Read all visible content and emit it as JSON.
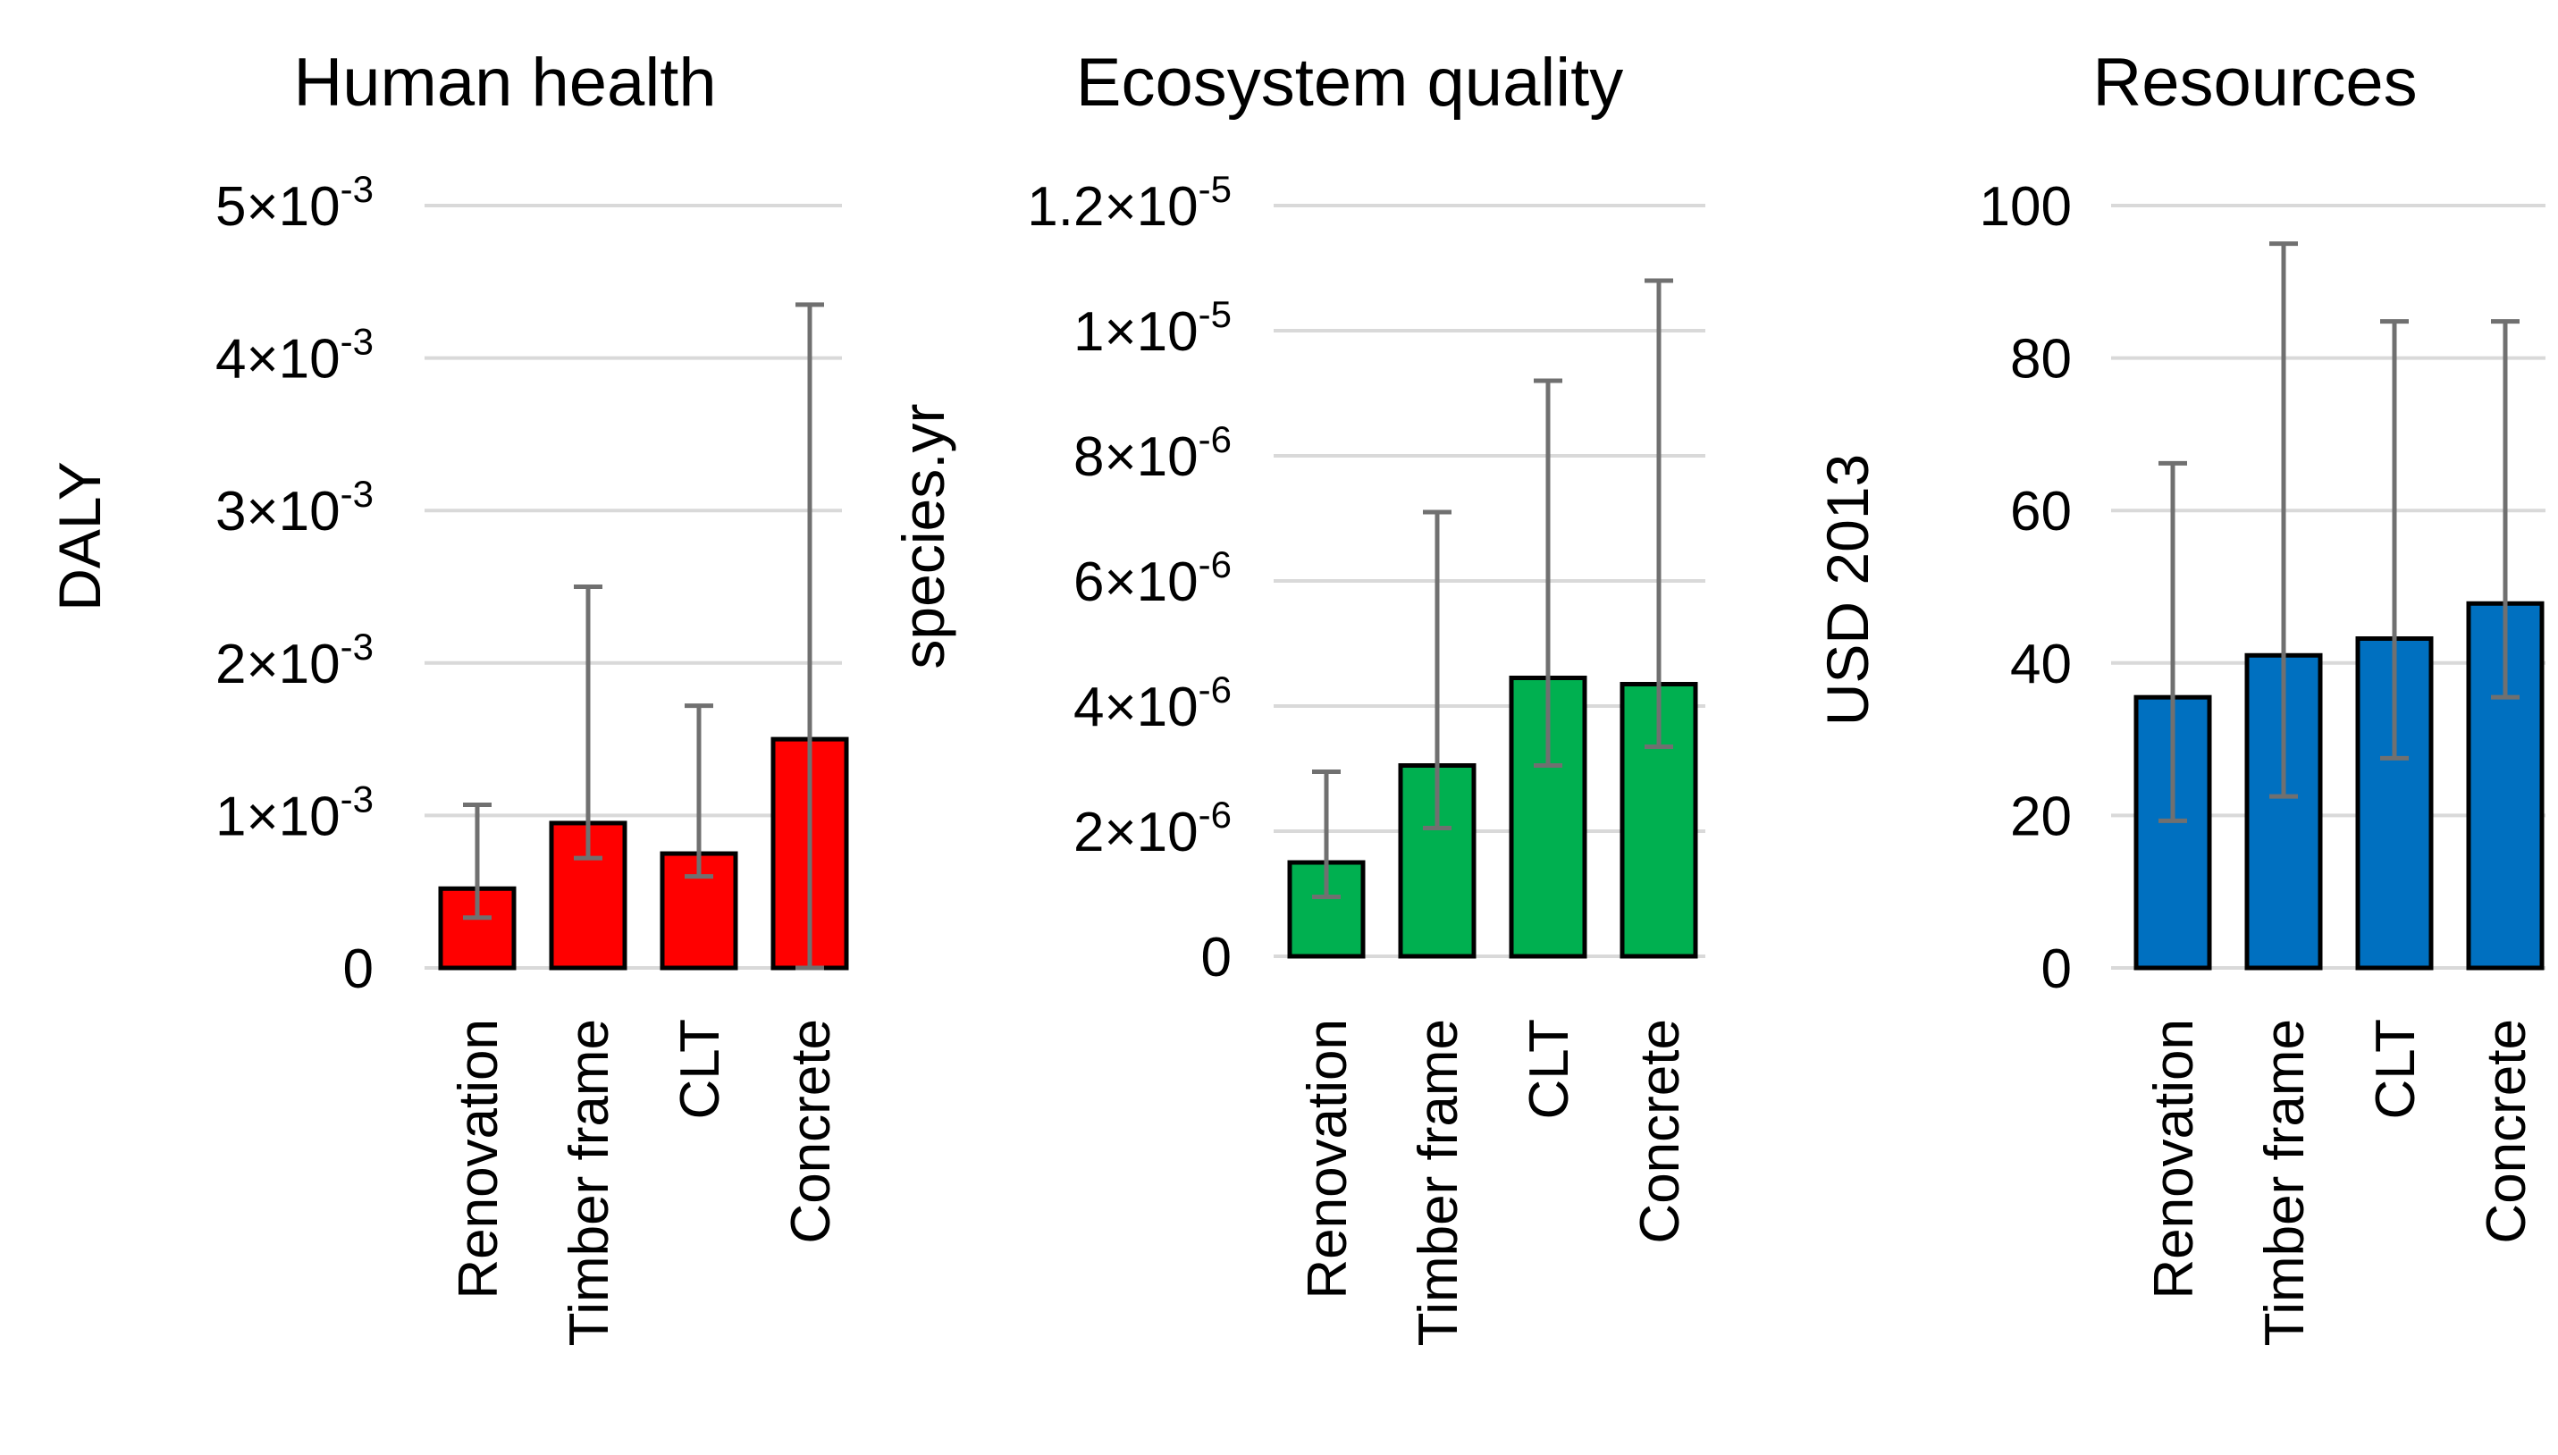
{
  "colors": {
    "human_health": "#ff0000",
    "ecosystem_quality": "#00b050",
    "resources": "#0070c0",
    "error_bar": "#707070",
    "gridline": "#d9d9d9",
    "bar_outline": "#000000"
  },
  "chart_data": [
    {
      "type": "bar",
      "title": "Human health",
      "ylabel": "DALY",
      "categories": [
        "Renovation",
        "Timber frame",
        "CLT",
        "Concrete"
      ],
      "values": [
        0.00052,
        0.00095,
        0.00075,
        0.0015
      ],
      "error_low": [
        0.00033,
        0.00072,
        0.0006,
        0.0
      ],
      "error_high": [
        0.00107,
        0.0025,
        0.00172,
        0.00435
      ],
      "ylim": [
        0,
        0.005
      ],
      "yticks": [
        {
          "v": 0,
          "mant": "0",
          "exp": ""
        },
        {
          "v": 0.001,
          "mant": "1×10",
          "exp": "-3"
        },
        {
          "v": 0.002,
          "mant": "2×10",
          "exp": "-3"
        },
        {
          "v": 0.003,
          "mant": "3×10",
          "exp": "-3"
        },
        {
          "v": 0.004,
          "mant": "4×10",
          "exp": "-3"
        },
        {
          "v": 0.005,
          "mant": "5×10",
          "exp": "-3"
        }
      ],
      "grid": true
    },
    {
      "type": "bar",
      "title": "Ecosystem quality",
      "ylabel": "species.yr",
      "categories": [
        "Renovation",
        "Timber frame",
        "CLT",
        "Concrete"
      ],
      "values": [
        1.5e-06,
        3.05e-06,
        4.45e-06,
        4.35e-06
      ],
      "error_low": [
        9.5e-07,
        2.05e-06,
        3.05e-06,
        3.35e-06
      ],
      "error_high": [
        2.95e-06,
        7.1e-06,
        9.2e-06,
        1.08e-05
      ],
      "ylim": [
        0,
        1.2e-05
      ],
      "yticks": [
        {
          "v": 0,
          "mant": "0",
          "exp": ""
        },
        {
          "v": 2e-06,
          "mant": "2×10",
          "exp": "-6"
        },
        {
          "v": 4e-06,
          "mant": "4×10",
          "exp": "-6"
        },
        {
          "v": 6e-06,
          "mant": "6×10",
          "exp": "-6"
        },
        {
          "v": 8e-06,
          "mant": "8×10",
          "exp": "-6"
        },
        {
          "v": 1e-05,
          "mant": "1×10",
          "exp": "-5"
        },
        {
          "v": 1.2e-05,
          "mant": "1.2×10",
          "exp": "-5"
        }
      ],
      "grid": true
    },
    {
      "type": "bar",
      "title": "Resources",
      "ylabel": "USD 2013",
      "categories": [
        "Renovation",
        "Timber frame",
        "CLT",
        "Concrete"
      ],
      "values": [
        35.5,
        41,
        43.2,
        47.8
      ],
      "error_low": [
        19.3,
        22.5,
        27.5,
        35.5
      ],
      "error_high": [
        66.2,
        95,
        84.8,
        84.8
      ],
      "ylim": [
        0,
        100
      ],
      "yticks": [
        {
          "v": 0,
          "mant": "0",
          "exp": ""
        },
        {
          "v": 20,
          "mant": "20",
          "exp": ""
        },
        {
          "v": 40,
          "mant": "40",
          "exp": ""
        },
        {
          "v": 60,
          "mant": "60",
          "exp": ""
        },
        {
          "v": 80,
          "mant": "80",
          "exp": ""
        },
        {
          "v": 100,
          "mant": "100",
          "exp": ""
        }
      ],
      "grid": true
    }
  ]
}
